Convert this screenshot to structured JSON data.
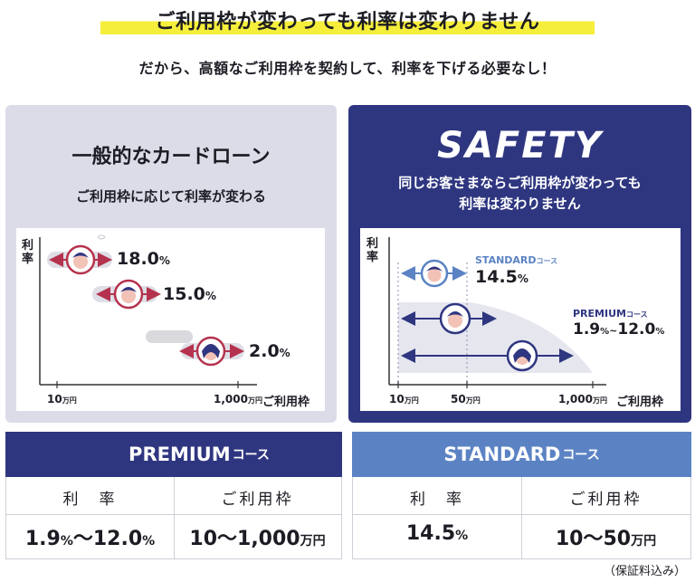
{
  "headline": "ご利用枠が変わっても利率は変わりません",
  "subheadline": "だから、高額なご利用枠を契約して、利率を下げる必要なし！",
  "left_panel": {
    "title": "一般的なカードローン",
    "subtitle": "ご利用枠に応じて利率が変わる",
    "chart": {
      "y_label": "利率",
      "x_label": "ご利用枠",
      "x_tick_1": "10",
      "x_tick_1_unit": "万円",
      "x_tick_2": "1,000",
      "x_tick_2_unit": "万円",
      "rate_1": "18.0",
      "rate_2": "15.0",
      "rate_3": "2.0",
      "pct": "%"
    }
  },
  "right_panel": {
    "brand": "SAFETY",
    "subtitle_line1": "同じお客さまならご利用枠が変わっても",
    "subtitle_line2": "利率は変わりません",
    "chart": {
      "y_label": "利率",
      "x_label": "ご利用枠",
      "x_tick_1": "10",
      "x_tick_2": "50",
      "x_tick_3": "1,000",
      "x_unit": "万円",
      "standard_label": "STANDARD",
      "standard_suffix": "コース",
      "standard_rate": "14.5",
      "premium_label": "PREMIUM",
      "premium_suffix": "コース",
      "premium_rate_low": "1.9",
      "premium_rate_sep": "~",
      "premium_rate_high": "12.0",
      "pct": "%"
    }
  },
  "premium_table": {
    "title": "PREMIUM",
    "title_suffix": "コース",
    "col_rate": "利　率",
    "col_limit": "ご利用枠",
    "rate_low": "1.9",
    "rate_sep": "～",
    "rate_high": "12.0",
    "pct": "%",
    "limit": "10～1,000",
    "limit_unit": "万円"
  },
  "standard_table": {
    "title": "STANDARD",
    "title_suffix": "コース",
    "col_rate": "利　率",
    "col_limit": "ご利用枠",
    "rate": "14.5",
    "pct": "%",
    "limit": "10～50",
    "limit_unit": "万円"
  },
  "footnote": "（保証料込み）",
  "colors": {
    "navy": "#2f3680",
    "blue": "#5b83c4",
    "crimson": "#b5324e",
    "highlight": "#f5ee3a",
    "lavender": "#dcdce9"
  }
}
